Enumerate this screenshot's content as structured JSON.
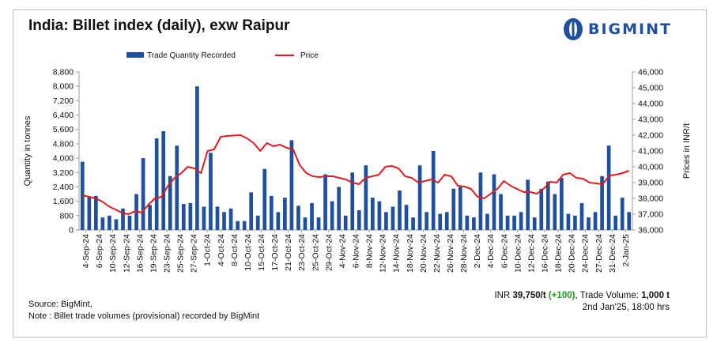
{
  "header": {
    "title": "India: Billet index (daily), exw Raipur",
    "logo_text": "BIGMINT",
    "logo_icon": "bigmint-logo-icon"
  },
  "footer": {
    "source": "Source: BigMint,",
    "note": "Note : Billet trade volumes (provisional) recorded by BigMint",
    "price_prefix": "INR ",
    "price_value": "39,750/t",
    "price_change": "(+100)",
    "volume_prefix": ", Trade Volume: ",
    "volume_value": "1,000 t",
    "timestamp": "2nd Jan'25, 18:00 hrs"
  },
  "chart_data": {
    "type": "bar",
    "title": "India: Billet index (daily), exw Raipur",
    "ylabel": "Quantity in tonnes",
    "y2label": "Prices in INR/t",
    "ylim": [
      0,
      8800
    ],
    "y2lim": [
      36000,
      46000
    ],
    "yticks": [
      "0",
      "800",
      "1,600",
      "2,400",
      "3,200",
      "4,000",
      "4,800",
      "5,600",
      "6,400",
      "7,200",
      "8,000",
      "8,800"
    ],
    "y2ticks": [
      "36,000",
      "37,000",
      "38,000",
      "39,000",
      "40,000",
      "41,000",
      "42,000",
      "43,000",
      "44,000",
      "45,000",
      "46,000"
    ],
    "x_labels": [
      "4-Sep-24",
      "6-Sep-24",
      "10-Sep-24",
      "12-Sep-24",
      "16-Sep-24",
      "19-Sep-24",
      "23-Sep-24",
      "25-Sep-24",
      "27-Sep-24",
      "1-Oct-24",
      "4-Oct-24",
      "8-Oct-24",
      "10-Oct-24",
      "15-Oct-24",
      "17-Oct-24",
      "21-Oct-24",
      "23-Oct-24",
      "25-Oct-24",
      "29-Oct-24",
      "4-Nov-24",
      "6-Nov-24",
      "8-Nov-24",
      "12-Nov-24",
      "14-Nov-24",
      "18-Nov-24",
      "20-Nov-24",
      "22-Nov-24",
      "26-Nov-24",
      "28-Nov-24",
      "2-Dec-24",
      "4-Dec-24",
      "6-Dec-24",
      "10-Dec-24",
      "12-Dec-24",
      "16-Dec-24",
      "18-Dec-24",
      "20-Dec-24",
      "24-Dec-24",
      "27-Dec-24",
      "31-Dec-24",
      "2-Jan-25"
    ],
    "legend_position": "top",
    "grid": false,
    "series": [
      {
        "name": "Trade Quantity Recorded",
        "color": "#1f4fa0",
        "axis": "left",
        "values": [
          3800,
          1800,
          1900,
          700,
          800,
          600,
          1200,
          800,
          2000,
          4000,
          1400,
          5100,
          5500,
          3000,
          4700,
          1450,
          1500,
          8000,
          1300,
          4300,
          1300,
          1000,
          1200,
          500,
          500,
          2100,
          800,
          3400,
          1900,
          1000,
          1800,
          5000,
          1350,
          700,
          1500,
          700,
          3100,
          1600,
          2400,
          800,
          3200,
          1100,
          3600,
          1800,
          1600,
          1000,
          1300,
          2200,
          1400,
          700,
          3600,
          1000,
          4400,
          900,
          1000,
          2300,
          2400,
          800,
          700,
          3200,
          900,
          3100,
          2000,
          800,
          800,
          1000,
          2800,
          700,
          2300,
          2700,
          2000,
          2900,
          900,
          800,
          1500,
          700,
          1000,
          3000,
          4700,
          800,
          1800,
          1000
        ]
      },
      {
        "name": "Price",
        "color": "#e41a1c",
        "axis": "right",
        "values": [
          38200,
          38100,
          38000,
          37800,
          37500,
          37300,
          37100,
          37000,
          37200,
          37100,
          37600,
          38000,
          38100,
          38800,
          39300,
          39600,
          40000,
          39900,
          39600,
          41000,
          41100,
          41900,
          41950,
          41980,
          42000,
          41800,
          41500,
          41000,
          41500,
          41300,
          41400,
          41200,
          41100,
          40100,
          39600,
          39400,
          39350,
          39400,
          39400,
          39300,
          39200,
          39000,
          38900,
          39300,
          39400,
          39500,
          40000,
          40050,
          39900,
          39400,
          39300,
          39000,
          39100,
          39200,
          39000,
          39500,
          39400,
          38800,
          38750,
          38600,
          38100,
          38000,
          38300,
          38600,
          39100,
          38800,
          38600,
          38400,
          38400,
          38300,
          38600,
          39050,
          39000,
          39500,
          39600,
          39300,
          39250,
          39000,
          38950,
          38900,
          39450,
          39500,
          39600,
          39750
        ]
      }
    ]
  }
}
